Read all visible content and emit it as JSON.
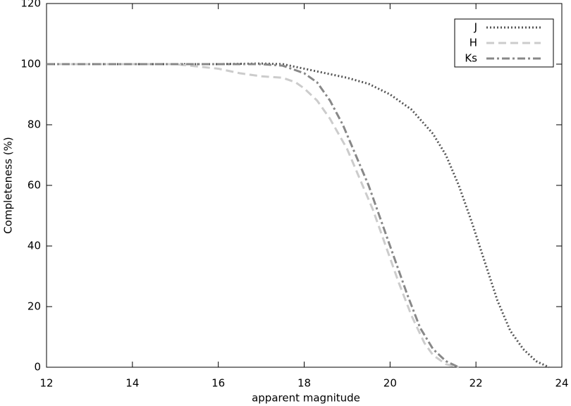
{
  "chart_data": {
    "type": "line",
    "x_label": "apparent magnitude",
    "y_label": "Completeness (%)",
    "xlim": [
      12,
      24
    ],
    "xticks": [
      12,
      14,
      16,
      18,
      20,
      22,
      24
    ],
    "ylim": [
      0,
      120
    ],
    "yticks": [
      0,
      20,
      40,
      60,
      80,
      100,
      120
    ],
    "legend": "upper right",
    "series": [
      {
        "name": "J",
        "color": "#555555",
        "style": "dotted",
        "x": [
          12,
          14,
          16,
          17,
          17.5,
          18,
          18.5,
          19,
          19.5,
          20,
          20.5,
          21,
          21.3,
          21.6,
          21.9,
          22.2,
          22.5,
          22.8,
          23.1,
          23.4,
          23.7
        ],
        "values": [
          100,
          100,
          100,
          100.2,
          100,
          98.5,
          97,
          95.5,
          93.5,
          90,
          85,
          77,
          70,
          60,
          48,
          35,
          22,
          12,
          6,
          2,
          0
        ]
      },
      {
        "name": "H",
        "color": "#cccccc",
        "style": "dashed",
        "x": [
          12,
          15,
          16,
          16.5,
          17,
          17.5,
          17.8,
          18,
          18.3,
          18.6,
          19,
          19.3,
          19.6,
          19.9,
          20.2,
          20.5,
          20.8,
          21,
          21.3,
          21.6
        ],
        "values": [
          100,
          100,
          98.5,
          97,
          96,
          95.5,
          94,
          92,
          88,
          82,
          72,
          62,
          52,
          40,
          28,
          17,
          8,
          4,
          1,
          0
        ]
      },
      {
        "name": "Ks",
        "color": "#888888",
        "style": "dashdot",
        "x": [
          12,
          14,
          16,
          17,
          17.5,
          18,
          18.3,
          18.6,
          18.9,
          19.2,
          19.5,
          19.8,
          20.1,
          20.4,
          20.7,
          21,
          21.3,
          21.6
        ],
        "values": [
          100,
          100,
          100,
          100,
          99.5,
          97,
          94,
          88,
          80,
          70,
          60,
          48,
          36,
          24,
          13,
          6,
          2,
          0
        ]
      }
    ]
  }
}
